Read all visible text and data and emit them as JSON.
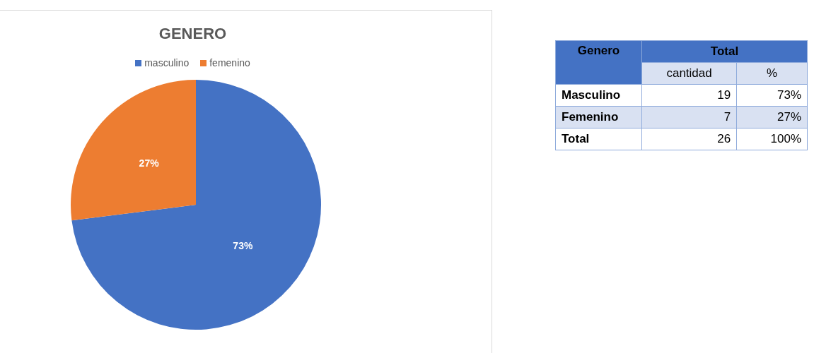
{
  "chart_data": [
    {
      "type": "pie",
      "title": "GENERO",
      "legend": "top",
      "categories": [
        "masculino",
        "femenino"
      ],
      "values": [
        73,
        27
      ],
      "colors": [
        "#4472c4",
        "#ed7d31"
      ],
      "value_labels": [
        "73%",
        "27%"
      ]
    },
    {
      "type": "other",
      "data_labels": true,
      "title": "Total",
      "ylabel": "Genero",
      "categories": [
        "Masculino",
        "Femenino",
        "Total"
      ],
      "series": [
        {
          "name": "cantidad",
          "colors": [
            "#ffffff",
            "#d9e1f2",
            "#ffffff"
          ],
          "values": [
            19,
            7,
            26
          ]
        },
        {
          "name": "%",
          "colors": [
            "#ffffff",
            "#d9e1f2",
            "#ffffff"
          ],
          "values": [
            73,
            27,
            100
          ],
          "value_labels": [
            "73%",
            "27%",
            "100%"
          ]
        }
      ]
    }
  ]
}
